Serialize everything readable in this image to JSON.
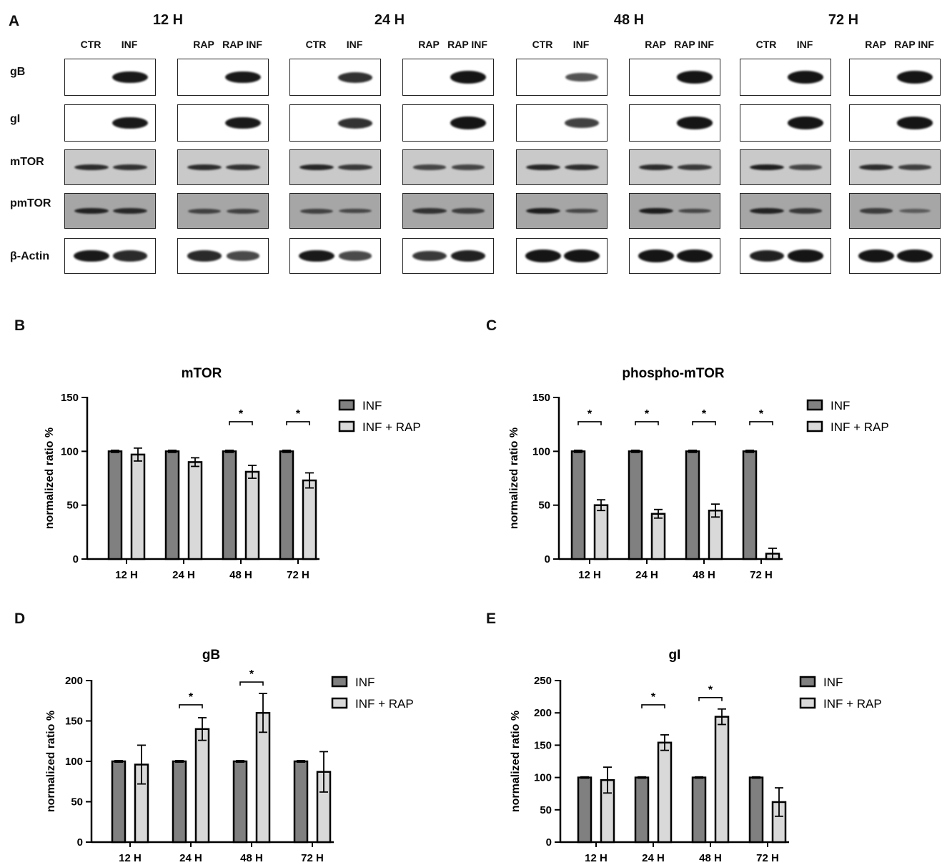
{
  "panels": {
    "A": "A",
    "B": "B",
    "C": "C",
    "D": "D",
    "E": "E"
  },
  "blot": {
    "timepoints": [
      "12 H",
      "24 H",
      "48 H",
      "72 H"
    ],
    "lane_labels": [
      "CTR",
      "INF",
      "RAP",
      "RAP INF"
    ],
    "rows": [
      "gB",
      "gI",
      "mTOR",
      "pmTOR",
      "β-Actin"
    ],
    "band_intensity": {
      "gB": [
        [
          0,
          0.9,
          0,
          0.9
        ],
        [
          0,
          0.75,
          0,
          1.0
        ],
        [
          0,
          0.55,
          0,
          0.95
        ],
        [
          0,
          1.0,
          0,
          1.0
        ]
      ],
      "gI": [
        [
          0,
          0.9,
          0,
          0.9
        ],
        [
          0,
          0.75,
          0,
          1.0
        ],
        [
          0,
          0.65,
          0,
          0.95
        ],
        [
          0,
          1.0,
          0,
          0.95
        ]
      ],
      "mTOR": [
        [
          0.75,
          0.7,
          0.75,
          0.7
        ],
        [
          0.8,
          0.65,
          0.55,
          0.55
        ],
        [
          0.8,
          0.75,
          0.75,
          0.65
        ],
        [
          0.85,
          0.55,
          0.75,
          0.6
        ]
      ],
      "pmTOR": [
        [
          0.8,
          0.75,
          0.5,
          0.5
        ],
        [
          0.5,
          0.45,
          0.65,
          0.55
        ],
        [
          0.85,
          0.45,
          0.85,
          0.45
        ],
        [
          0.8,
          0.6,
          0.55,
          0.25
        ]
      ],
      "β-Actin": [
        [
          0.9,
          0.8,
          0.8,
          0.6
        ],
        [
          0.9,
          0.6,
          0.7,
          0.85
        ],
        [
          1.0,
          1.0,
          1.0,
          1.0
        ],
        [
          0.85,
          0.95,
          1.0,
          1.0
        ]
      ]
    }
  },
  "chart_data": [
    {
      "panel": "B",
      "type": "bar",
      "title": "mTOR",
      "xlabel": "",
      "ylabel": "normalized ratio %",
      "ylim": [
        0,
        150
      ],
      "yticks": [
        0,
        50,
        100,
        150
      ],
      "categories": [
        "12 H",
        "24 H",
        "48 H",
        "72 H"
      ],
      "series": [
        {
          "name": "INF",
          "values": [
            100,
            100,
            100,
            100
          ],
          "errors": [
            1,
            1,
            1,
            1
          ],
          "color": "#808080"
        },
        {
          "name": "INF + RAP",
          "values": [
            97,
            90,
            81,
            73
          ],
          "errors": [
            6,
            4,
            6,
            7
          ],
          "color": "#d9d9d9"
        }
      ],
      "significance": [
        "",
        "",
        "*",
        "*"
      ],
      "legend": "right"
    },
    {
      "panel": "C",
      "type": "bar",
      "title": "phospho-mTOR",
      "xlabel": "",
      "ylabel": "normalized ratio %",
      "ylim": [
        0,
        150
      ],
      "yticks": [
        0,
        50,
        100,
        150
      ],
      "categories": [
        "12 H",
        "24 H",
        "48 H",
        "72 H"
      ],
      "series": [
        {
          "name": "INF",
          "values": [
            100,
            100,
            100,
            100
          ],
          "errors": [
            1,
            1,
            1,
            1
          ],
          "color": "#808080"
        },
        {
          "name": "INF + RAP",
          "values": [
            50,
            42,
            45,
            5
          ],
          "errors": [
            5,
            4,
            6,
            5
          ],
          "color": "#d9d9d9"
        }
      ],
      "significance": [
        "*",
        "*",
        "*",
        "*"
      ],
      "legend": "right"
    },
    {
      "panel": "D",
      "type": "bar",
      "title": "gB",
      "xlabel": "",
      "ylabel": "normalized ratio %",
      "ylim": [
        0,
        200
      ],
      "yticks": [
        0,
        50,
        100,
        150,
        200
      ],
      "categories": [
        "12 H",
        "24 H",
        "48 H",
        "72 H"
      ],
      "series": [
        {
          "name": "INF",
          "values": [
            100,
            100,
            100,
            100
          ],
          "errors": [
            1,
            1,
            1,
            1
          ],
          "color": "#808080"
        },
        {
          "name": "INF + RAP",
          "values": [
            96,
            140,
            160,
            87
          ],
          "errors": [
            24,
            14,
            24,
            25
          ],
          "color": "#d9d9d9"
        }
      ],
      "significance": [
        "",
        "*",
        "*",
        ""
      ],
      "legend": "right"
    },
    {
      "panel": "E",
      "type": "bar",
      "title": "gI",
      "xlabel": "",
      "ylabel": "normalized ratio %",
      "ylim": [
        0,
        250
      ],
      "yticks": [
        0,
        50,
        100,
        150,
        200,
        250
      ],
      "categories": [
        "12 H",
        "24 H",
        "48 H",
        "72 H"
      ],
      "series": [
        {
          "name": "INF",
          "values": [
            100,
            100,
            100,
            100
          ],
          "errors": [
            1,
            1,
            1,
            1
          ],
          "color": "#808080"
        },
        {
          "name": "INF + RAP",
          "values": [
            96,
            154,
            194,
            62
          ],
          "errors": [
            20,
            12,
            12,
            22
          ],
          "color": "#d9d9d9"
        }
      ],
      "significance": [
        "",
        "*",
        "*",
        ""
      ],
      "legend": "right"
    }
  ]
}
